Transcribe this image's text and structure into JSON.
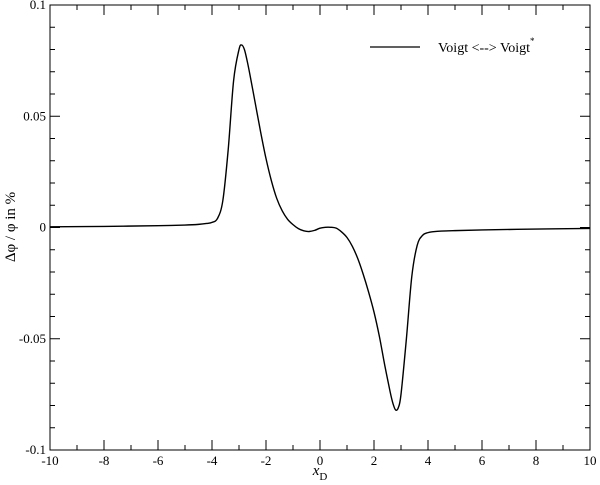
{
  "chart_data": {
    "type": "line",
    "title": "",
    "xlabel": "x",
    "xlabel_sub": "D",
    "ylabel": "Δφ / φ in %",
    "xlim": [
      -10,
      10
    ],
    "ylim": [
      -0.1,
      0.1
    ],
    "grid": false,
    "legend_position": "top-right",
    "x_ticks": [
      -10,
      -8,
      -6,
      -4,
      -2,
      0,
      2,
      4,
      6,
      8,
      10
    ],
    "x_tick_labels": [
      "-10",
      "-8",
      "-6",
      "-4",
      "-2",
      "0",
      "2",
      "4",
      "6",
      "8",
      "10"
    ],
    "y_ticks": [
      -0.1,
      -0.05,
      0,
      0.05,
      0.1
    ],
    "y_tick_labels": [
      "-0.1",
      "-0.05",
      "0",
      "0.05",
      "0.1"
    ],
    "series": [
      {
        "name": "Voigt <--> Voigt",
        "name_sup": "*",
        "color": "#000000",
        "x": [
          -10,
          -8,
          -6,
          -5,
          -4.5,
          -4.2,
          -4.0,
          -3.8,
          -3.6,
          -3.4,
          -3.2,
          -3.0,
          -2.9,
          -2.8,
          -2.7,
          -2.6,
          -2.4,
          -2.2,
          -2.0,
          -1.8,
          -1.6,
          -1.4,
          -1.2,
          -1.0,
          -0.8,
          -0.6,
          -0.4,
          -0.2,
          0.0,
          0.2,
          0.4,
          0.6,
          0.8,
          1.0,
          1.2,
          1.4,
          1.6,
          1.8,
          2.0,
          2.2,
          2.4,
          2.6,
          2.7,
          2.8,
          2.9,
          3.0,
          3.2,
          3.4,
          3.6,
          3.8,
          4.0,
          4.2,
          4.5,
          5,
          6,
          8,
          10
        ],
        "y": [
          0.0003,
          0.0005,
          0.0008,
          0.0011,
          0.0014,
          0.0018,
          0.0023,
          0.004,
          0.012,
          0.035,
          0.066,
          0.08,
          0.082,
          0.08,
          0.075,
          0.069,
          0.056,
          0.043,
          0.031,
          0.021,
          0.013,
          0.0075,
          0.0037,
          0.0013,
          -0.0005,
          -0.0015,
          -0.0018,
          -0.0013,
          -0.0003,
          0.0001,
          0.0001,
          -0.0003,
          -0.002,
          -0.0045,
          -0.0085,
          -0.014,
          -0.021,
          -0.029,
          -0.038,
          -0.049,
          -0.062,
          -0.074,
          -0.079,
          -0.082,
          -0.081,
          -0.075,
          -0.05,
          -0.022,
          -0.008,
          -0.0035,
          -0.0023,
          -0.0019,
          -0.0016,
          -0.0014,
          -0.0011,
          -0.0007,
          -0.0004
        ]
      }
    ]
  }
}
